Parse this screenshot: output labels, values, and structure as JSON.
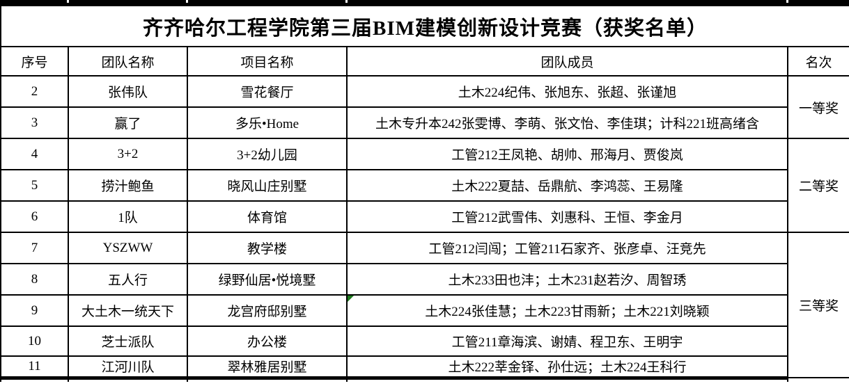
{
  "title": "齐齐哈尔工程学院第三届BIM建模创新设计竞赛（获奖名单）",
  "table": {
    "columns": [
      "序号",
      "团队名称",
      "项目名称",
      "团队成员",
      "名次"
    ],
    "rows": [
      {
        "no": "2",
        "team": "张伟队",
        "project": "雪花餐厅",
        "members": "土木224纪伟、张旭东、张超、张谨旭"
      },
      {
        "no": "3",
        "team": "赢了",
        "project": "多乐•Home",
        "members": "土木专升本242张雯博、李萌、张文怡、李佳琪；计科221班高绪含"
      },
      {
        "no": "4",
        "team": "3+2",
        "project": "3+2幼儿园",
        "members": "工管212王凤艳、胡帅、邢海月、贾俊岚"
      },
      {
        "no": "5",
        "team": "捞汁鲍鱼",
        "project": "晓风山庄别墅",
        "members": "土木222夏喆、岳鼎航、李鸿蕊、王易隆"
      },
      {
        "no": "6",
        "team": "1队",
        "project": "体育馆",
        "members": "工管212武雪伟、刘惠科、王恒、李金月"
      },
      {
        "no": "7",
        "team": "YSZWW",
        "project": "教学楼",
        "members": "工管212闫闯；工管211石家齐、张彦卓、汪竞先"
      },
      {
        "no": "8",
        "team": "五人行",
        "project": "绿野仙居•悦境墅",
        "members": "土木233田也沣；土木231赵若汐、周智琇"
      },
      {
        "no": "9",
        "team": "大土木一统天下",
        "project": "龙宫府邸别墅",
        "members": "土木224张佳慧；土木223甘雨新；土木221刘晓颖"
      },
      {
        "no": "10",
        "team": "芝士派队",
        "project": "办公楼",
        "members": "工管211章海滨、谢婧、程卫东、王明宇"
      },
      {
        "no": "11",
        "team": "江河川队",
        "project": "翠林雅居别墅",
        "members": "土木222莘金铎、孙仕远；土木224王科行"
      }
    ],
    "rank_groups": [
      {
        "label": "一等奖",
        "start_index": 0,
        "rowspan": 2
      },
      {
        "label": "二等奖",
        "start_index": 2,
        "rowspan": 3
      },
      {
        "label": "三等奖",
        "start_index": 5,
        "rowspan": 5
      }
    ]
  },
  "comment_marker": {
    "row_no": "9",
    "color": "#1e7b1e"
  }
}
